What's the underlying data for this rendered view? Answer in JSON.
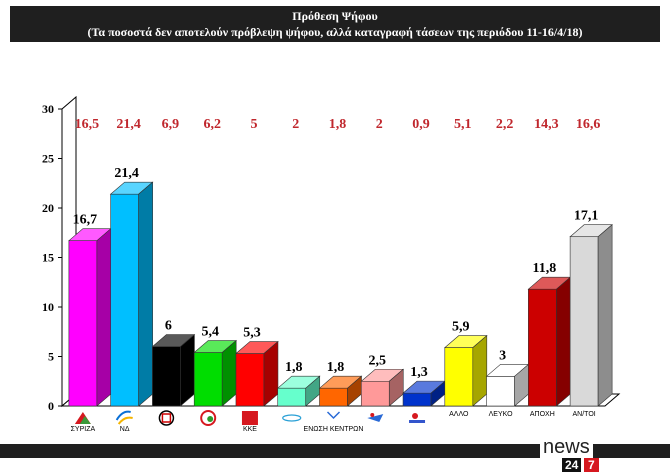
{
  "header": {
    "title": "Πρόθεση Ψήφου",
    "subtitle": "(Τα ποσοστά δεν αποτελούν πρόβλεψη ψήφου, αλλά καταγραφή τάσεων  της περιόδου 11-16/4/18)"
  },
  "logo": {
    "word": "news",
    "num1": "24",
    "num2": "7"
  },
  "chart_data": {
    "type": "bar",
    "title": "Πρόθεση Ψήφου",
    "ylim": [
      0,
      30
    ],
    "yticks": [
      0,
      5,
      10,
      15,
      20,
      25,
      30
    ],
    "grid": false,
    "categories": [
      "ΣΥΡΙΖΑ",
      "ΝΔ",
      "ΧΑ",
      "ΚΙΝΑΛ",
      "ΚΚΕ",
      "Ποτάμι",
      "ΕνΚε",
      "ΑΝΕΛ",
      "ΛΑΕ",
      "ΑΛΛΟ",
      "ΛΕΥΚΟ",
      "ΑΠΟΧΗ",
      "ΑΝ/ΤΟΙ"
    ],
    "category_labels": [
      "ΣΥΡΙΖΑ",
      "ΝΔ",
      "",
      "",
      "ΚΚΕ",
      "",
      "ΕΝΩΣΗ ΚΕΝΤΡΩΝ",
      "",
      "",
      "ΑΛΛΟ",
      "ΛΕΥΚΟ",
      "ΑΠΟΧΗ",
      "ΑΝ/ΤΟΙ"
    ],
    "category_icons": [
      "syriza-logo-icon",
      "nd-logo-icon",
      "golden-dawn-logo-icon",
      "kinal-logo-icon",
      "kke-logo-icon",
      "potami-logo-icon",
      "enosi-kentroon-logo-icon",
      "anel-logo-icon",
      "lae-logo-icon",
      "",
      "",
      "",
      ""
    ],
    "values": [
      16.7,
      21.4,
      6,
      5.4,
      5.3,
      1.8,
      1.8,
      2.5,
      1.3,
      5.9,
      3,
      11.8,
      17.1
    ],
    "value_labels": [
      "16,7",
      "21,4",
      "6",
      "5,4",
      "5,3",
      "1,8",
      "1,8",
      "2,5",
      "1,3",
      "5,9",
      "3",
      "11,8",
      "17,1"
    ],
    "previous_values": [
      16.5,
      21.4,
      6.9,
      6.2,
      5,
      2,
      1.8,
      2,
      0.9,
      5.1,
      2.2,
      14.3,
      16.6
    ],
    "previous_labels": [
      "16,5",
      "21,4",
      "6,9",
      "6,2",
      "5",
      "2",
      "1,8",
      "2",
      "0,9",
      "5,1",
      "2,2",
      "14,3",
      "16,6"
    ],
    "colors": [
      "#ff00ff",
      "#00bfff",
      "#000000",
      "#00dd00",
      "#ff0000",
      "#66ffcc",
      "#ff6600",
      "#ff9999",
      "#0033cc",
      "#ffff00",
      "#ffffff",
      "#cc0000",
      "#d9d9d9"
    ]
  }
}
